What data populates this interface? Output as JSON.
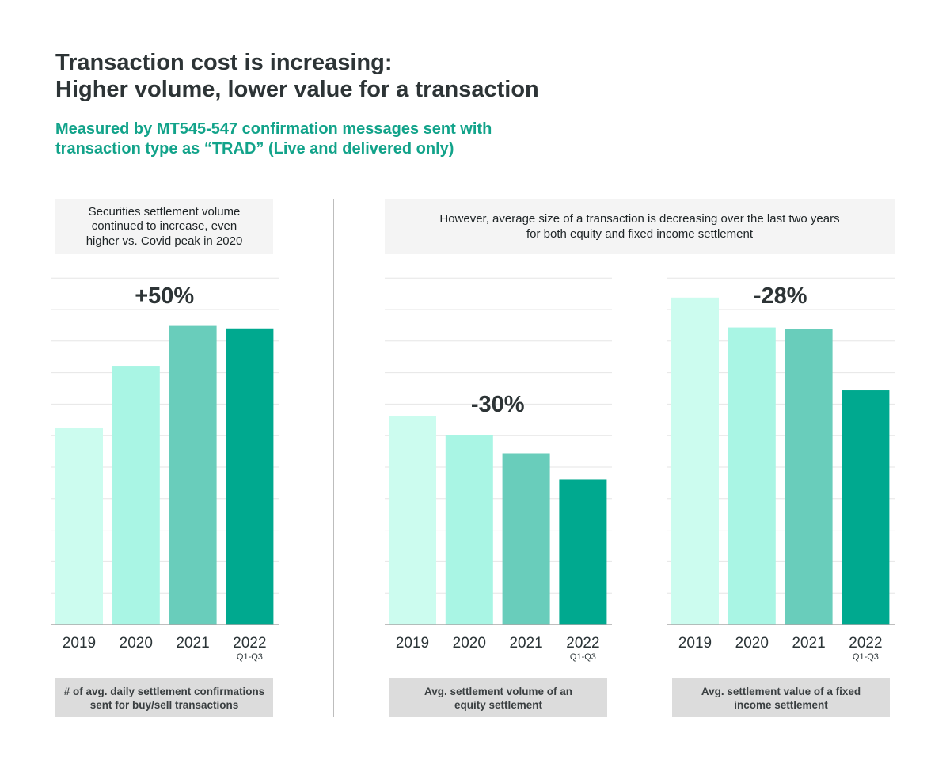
{
  "title": {
    "line1": "Transaction cost is increasing:",
    "line2": "Higher volume, lower value for a transaction"
  },
  "subtitle": {
    "line1": "Measured by MT545-547 confirmation messages sent with",
    "line2": "transaction type as “TRAD” (Live and delivered only)"
  },
  "notes": {
    "left": {
      "line1": "Securities settlement volume",
      "line2": "continued to increase, even",
      "line3": "higher vs. Covid peak in 2020"
    },
    "right": {
      "line1": "However, average size of a transaction is decreasing over the last two years",
      "line2": "for both equity and fixed income settlement"
    }
  },
  "colors": {
    "bar_2019": "#ccfcef",
    "bar_2020": "#a9f5e4",
    "bar_2021": "#69cdbb",
    "bar_2022": "#00a98f",
    "title": "#2d3436",
    "subtitle": "#12a38a"
  },
  "chart_data": [
    {
      "type": "bar",
      "categories": [
        "2019",
        "2020",
        "2021",
        "2022"
      ],
      "category_sublabels": [
        "",
        "",
        "",
        "Q1-Q3"
      ],
      "values": [
        62.5,
        82.3,
        95.0,
        94.2
      ],
      "ylim": [
        0,
        110
      ],
      "grid": true,
      "annotation": "+50%",
      "footer": {
        "line1": "# of avg. daily settlement confirmations",
        "line2": "sent for buy/sell transactions"
      }
    },
    {
      "type": "bar",
      "categories": [
        "2019",
        "2020",
        "2021",
        "2022"
      ],
      "category_sublabels": [
        "",
        "",
        "",
        "Q1-Q3"
      ],
      "values": [
        66.2,
        60.2,
        54.5,
        46.2
      ],
      "ylim": [
        0,
        110
      ],
      "grid": true,
      "annotation": "-30%",
      "footer": {
        "line1": "Avg. settlement volume of an",
        "line2": "equity settlement"
      }
    },
    {
      "type": "bar",
      "categories": [
        "2019",
        "2020",
        "2021",
        "2022"
      ],
      "category_sublabels": [
        "",
        "",
        "",
        "Q1-Q3"
      ],
      "values": [
        104.0,
        94.5,
        94.0,
        74.5
      ],
      "ylim": [
        0,
        110
      ],
      "grid": true,
      "annotation": "-28%",
      "footer": {
        "line1": "Avg. settlement value of a fixed",
        "line2": "income settlement"
      }
    }
  ]
}
